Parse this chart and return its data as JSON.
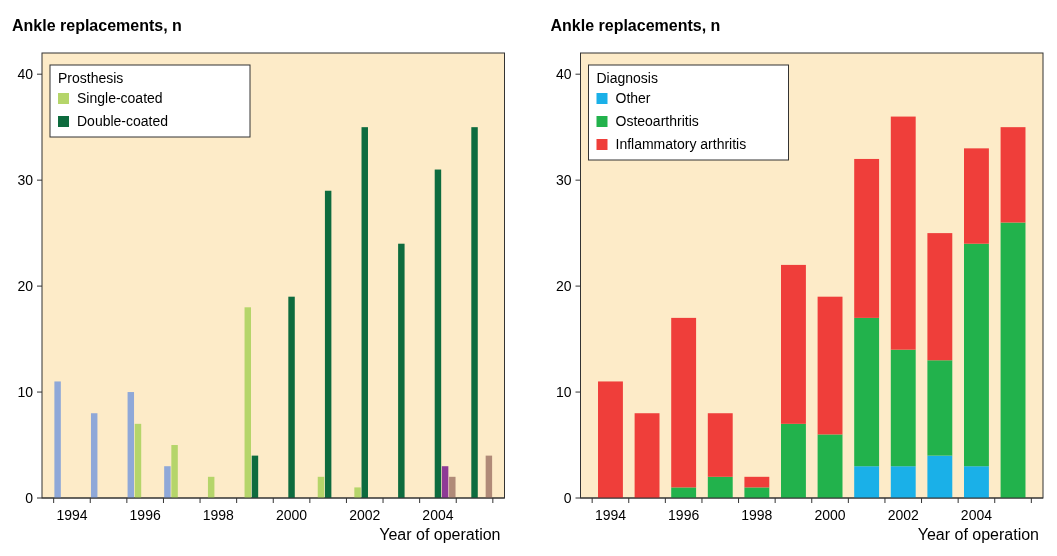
{
  "chart_data": [
    {
      "type": "bar",
      "ylabel": "Ankle replacements, n",
      "xlabel": "Year of operation",
      "categories": [
        "1994",
        null,
        "1996",
        null,
        "1998",
        null,
        "2000",
        null,
        "2002",
        null,
        "2004",
        null
      ],
      "ylim": [
        0,
        42
      ],
      "yticks": [
        0,
        10,
        20,
        30,
        40
      ],
      "legend": "top left",
      "legend_title": "Prosthesis",
      "series": [
        {
          "color": "#8fa8d8",
          "values": [
            11,
            8,
            10,
            3,
            null,
            null,
            null,
            null,
            null,
            null,
            null,
            null
          ]
        },
        {
          "name": "Single-coated",
          "color": "#b5d56a",
          "values": [
            null,
            null,
            7,
            5,
            2,
            18,
            null,
            2,
            1,
            null,
            null,
            null
          ]
        },
        {
          "name": "Double-coated",
          "color": "#0d6b3e",
          "values": [
            null,
            null,
            null,
            null,
            null,
            4,
            19,
            29,
            35,
            24,
            31,
            35
          ]
        },
        {
          "color": "#8e3a96",
          "values": [
            null,
            null,
            null,
            null,
            null,
            null,
            null,
            null,
            null,
            null,
            3,
            null
          ]
        },
        {
          "color": "#b08a78",
          "values": [
            null,
            null,
            null,
            null,
            null,
            null,
            null,
            null,
            null,
            null,
            2,
            4
          ]
        }
      ]
    },
    {
      "type": "bar",
      "stacked": true,
      "ylabel": "Ankle replacements, n",
      "xlabel": "Year of operation",
      "categories": [
        "1994",
        null,
        "1996",
        null,
        "1998",
        null,
        "2000",
        null,
        "2002",
        null,
        "2004",
        null
      ],
      "ylim": [
        0,
        42
      ],
      "yticks": [
        0,
        10,
        20,
        30,
        40
      ],
      "legend": "top left",
      "legend_title": "Diagnosis",
      "series": [
        {
          "name": "Other",
          "color": "#1ab0e8",
          "values": [
            0,
            0,
            0,
            0,
            0,
            0,
            0,
            3,
            3,
            4,
            3,
            0
          ]
        },
        {
          "name": "Osteoarthritis",
          "color": "#22b24c",
          "values": [
            0,
            0,
            1,
            2,
            1,
            7,
            6,
            14,
            11,
            9,
            21,
            26
          ]
        },
        {
          "name": "Inflammatory arthritis",
          "color": "#ef3e3a",
          "values": [
            11,
            8,
            16,
            6,
            1,
            15,
            13,
            15,
            22,
            12,
            9,
            9
          ]
        }
      ]
    }
  ]
}
